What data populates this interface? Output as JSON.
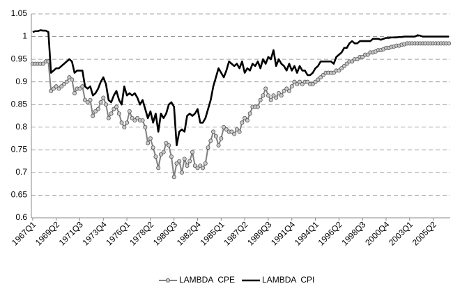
{
  "chart_data": {
    "type": "line",
    "categories": [
      "1967Q1",
      null,
      null,
      null,
      null,
      null,
      null,
      null,
      null,
      "1969Q2",
      null,
      null,
      null,
      null,
      null,
      null,
      null,
      null,
      "1971Q3",
      null,
      null,
      null,
      null,
      null,
      null,
      null,
      null,
      "1973Q4",
      null,
      null,
      null,
      null,
      null,
      null,
      null,
      null,
      "1976Q1",
      null,
      null,
      null,
      null,
      null,
      null,
      null,
      null,
      "1978Q2",
      null,
      null,
      null,
      null,
      null,
      null,
      null,
      null,
      "1980Q3",
      null,
      null,
      null,
      null,
      null,
      null,
      null,
      null,
      "1982Q4",
      null,
      null,
      null,
      null,
      null,
      null,
      null,
      null,
      "1985Q1",
      null,
      null,
      null,
      null,
      null,
      null,
      null,
      null,
      "1987Q2",
      null,
      null,
      null,
      null,
      null,
      null,
      null,
      null,
      "1989Q3",
      null,
      null,
      null,
      null,
      null,
      null,
      null,
      null,
      "1991Q4",
      null,
      null,
      null,
      null,
      null,
      null,
      null,
      null,
      "1994Q1",
      null,
      null,
      null,
      null,
      null,
      null,
      null,
      null,
      "1996Q2",
      null,
      null,
      null,
      null,
      null,
      null,
      null,
      null,
      "1998Q3",
      null,
      null,
      null,
      null,
      null,
      null,
      null,
      null,
      "2000Q4",
      null,
      null,
      null,
      null,
      null,
      null,
      null,
      null,
      "2003Q1",
      null,
      null,
      null,
      null,
      null,
      null,
      null,
      null,
      "2005Q2",
      null,
      null,
      null,
      null,
      null,
      null
    ],
    "series": [
      {
        "name": "LAMBDA  CPE",
        "color": "#808080",
        "marker": "circle",
        "values": [
          0.94,
          0.94,
          0.94,
          0.94,
          0.94,
          0.945,
          0.945,
          0.88,
          0.885,
          0.89,
          0.885,
          0.89,
          0.895,
          0.9,
          0.91,
          0.905,
          0.875,
          0.885,
          0.885,
          0.89,
          0.86,
          0.855,
          0.86,
          0.825,
          0.835,
          0.84,
          0.855,
          0.865,
          0.85,
          0.82,
          0.83,
          0.84,
          0.845,
          0.83,
          0.81,
          0.8,
          0.81,
          0.835,
          0.82,
          0.815,
          0.82,
          0.815,
          0.815,
          0.8,
          0.765,
          0.775,
          0.755,
          0.735,
          0.71,
          0.74,
          0.745,
          0.765,
          0.76,
          0.735,
          0.69,
          0.72,
          0.725,
          0.7,
          0.73,
          0.715,
          0.725,
          0.745,
          0.715,
          0.71,
          0.715,
          0.71,
          0.72,
          0.755,
          0.77,
          0.79,
          0.78,
          0.76,
          0.775,
          0.8,
          0.795,
          0.79,
          0.79,
          0.785,
          0.795,
          0.79,
          0.81,
          0.82,
          0.815,
          0.83,
          0.845,
          0.845,
          0.845,
          0.86,
          0.87,
          0.885,
          0.87,
          0.86,
          0.87,
          0.865,
          0.875,
          0.87,
          0.88,
          0.885,
          0.88,
          0.89,
          0.9,
          0.895,
          0.9,
          0.895,
          0.9,
          0.9,
          0.895,
          0.895,
          0.9,
          0.905,
          0.91,
          0.915,
          0.92,
          0.92,
          0.92,
          0.92,
          0.925,
          0.925,
          0.93,
          0.935,
          0.94,
          0.945,
          0.945,
          0.95,
          0.95,
          0.955,
          0.955,
          0.96,
          0.96,
          0.965,
          0.965,
          0.967,
          0.97,
          0.97,
          0.972,
          0.975,
          0.975,
          0.977,
          0.978,
          0.98,
          0.98,
          0.982,
          0.983,
          0.985,
          0.985,
          0.985,
          0.985,
          0.985,
          0.985,
          0.985,
          0.985,
          0.985,
          0.985,
          0.985,
          0.985,
          0.985,
          0.985,
          0.985,
          0.985,
          0.985
        ]
      },
      {
        "name": "LAMBDA  CPI",
        "color": "#000000",
        "values": [
          1.01,
          1.012,
          1.012,
          1.014,
          1.013,
          1.013,
          1.01,
          0.92,
          0.925,
          0.93,
          0.93,
          0.935,
          0.94,
          0.945,
          0.95,
          0.945,
          0.92,
          0.925,
          0.925,
          0.925,
          0.89,
          0.885,
          0.89,
          0.87,
          0.875,
          0.885,
          0.9,
          0.91,
          0.895,
          0.86,
          0.855,
          0.87,
          0.88,
          0.86,
          0.85,
          0.89,
          0.87,
          0.875,
          0.87,
          0.875,
          0.865,
          0.85,
          0.86,
          0.84,
          0.82,
          0.835,
          0.81,
          0.83,
          0.79,
          0.83,
          0.82,
          0.83,
          0.85,
          0.855,
          0.845,
          0.76,
          0.79,
          0.795,
          0.79,
          0.825,
          0.83,
          0.825,
          0.83,
          0.84,
          0.81,
          0.81,
          0.82,
          0.84,
          0.86,
          0.89,
          0.91,
          0.93,
          0.92,
          0.91,
          0.925,
          0.945,
          0.94,
          0.935,
          0.94,
          0.93,
          0.945,
          0.92,
          0.93,
          0.925,
          0.94,
          0.935,
          0.945,
          0.93,
          0.95,
          0.94,
          0.955,
          0.95,
          0.97,
          0.935,
          0.95,
          0.94,
          0.935,
          0.925,
          0.94,
          0.925,
          0.935,
          0.92,
          0.935,
          0.925,
          0.925,
          0.915,
          0.915,
          0.92,
          0.93,
          0.935,
          0.945,
          0.945,
          0.945,
          0.945,
          0.945,
          0.94,
          0.955,
          0.96,
          0.965,
          0.975,
          0.975,
          0.985,
          0.99,
          0.985,
          0.985,
          0.99,
          0.99,
          0.99,
          0.99,
          0.99,
          0.995,
          0.995,
          0.995,
          0.993,
          0.995,
          0.997,
          0.997,
          0.998,
          0.998,
          0.998,
          0.999,
          0.999,
          1,
          1,
          1,
          1,
          1,
          1.003,
          1.002,
          1,
          1,
          1,
          1,
          1,
          1,
          1,
          1,
          1,
          1,
          1
        ]
      }
    ],
    "ylim": [
      0.6,
      1.05
    ],
    "yticks": [
      0.6,
      0.65,
      0.7,
      0.75,
      0.8,
      0.85,
      0.9,
      0.95,
      1,
      1.05
    ],
    "grid": true,
    "legend": "bottom"
  }
}
